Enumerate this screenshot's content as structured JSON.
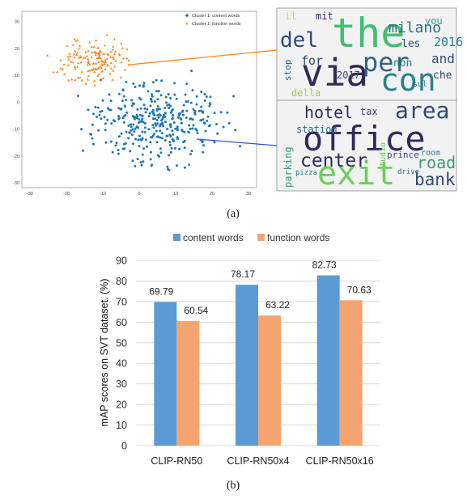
{
  "panel_a": {
    "caption": "(a)",
    "legend": [
      {
        "label": "Cluster 1: content words",
        "color": "#1f77b4",
        "marker": "dot"
      },
      {
        "label": "Cluster 1: function words",
        "color": "#ff7f0e",
        "marker": "triangle"
      }
    ],
    "x_ticks": [
      "-30",
      "-20",
      "-10",
      "0",
      "10",
      "20",
      "30"
    ],
    "y_ticks": [
      "30",
      "20",
      "10",
      "0",
      "-10",
      "-20",
      "-30"
    ],
    "wordcloud_function": [
      {
        "text": "the",
        "color": "#3fbf73"
      },
      {
        "text": "via",
        "color": "#2f2a5a"
      },
      {
        "text": "per",
        "color": "#33627e"
      },
      {
        "text": "con",
        "color": "#2a7f8c"
      },
      {
        "text": "del",
        "color": "#2f4a78"
      },
      {
        "text": "milano",
        "color": "#2d6a8a"
      },
      {
        "text": "and",
        "color": "#2d4f7f"
      },
      {
        "text": "2016",
        "color": "#2a7f8c"
      },
      {
        "text": "for",
        "color": "#2f4a78"
      },
      {
        "text": "stop",
        "color": "#2f5d86"
      },
      {
        "text": "non",
        "color": "#2a7f8c"
      },
      {
        "text": "les",
        "color": "#2f4a78"
      },
      {
        "text": "che",
        "color": "#2f4a78"
      },
      {
        "text": "mit",
        "color": "#2f2a5a"
      },
      {
        "text": "you",
        "color": "#3a9d7b"
      },
      {
        "text": "2017",
        "color": "#2f4a78"
      },
      {
        "text": "della",
        "color": "#9fcf55"
      },
      {
        "text": "sul",
        "color": "#2a7f8c"
      },
      {
        "text": "il",
        "color": "#c8dc3a"
      }
    ],
    "wordcloud_content": [
      {
        "text": "area",
        "color": "#2f4a78"
      },
      {
        "text": "hotel",
        "color": "#2a2e5c"
      },
      {
        "text": "office",
        "color": "#2f2a5a"
      },
      {
        "text": "station",
        "color": "#2d6a8a"
      },
      {
        "text": "center",
        "color": "#2f2a5a"
      },
      {
        "text": "exit",
        "color": "#6ccf5a"
      },
      {
        "text": "road",
        "color": "#3a9d7b"
      },
      {
        "text": "bank",
        "color": "#2f4a78"
      },
      {
        "text": "prince",
        "color": "#2f4a78"
      },
      {
        "text": "parking",
        "color": "#3a9d7b"
      },
      {
        "text": "pizza",
        "color": "#2a7f8c"
      },
      {
        "text": "tax",
        "color": "#2f4a78"
      },
      {
        "text": "drive",
        "color": "#2d6a8a"
      },
      {
        "text": "studio",
        "color": "#6ccf5a"
      },
      {
        "text": "room",
        "color": "#2a7f8c"
      }
    ]
  },
  "panel_b": {
    "caption": "(b)",
    "colors": {
      "content": "#5b9bd5",
      "function": "#f4a46e",
      "grid": "#d9d9d9",
      "axis_text": "#333333"
    }
  },
  "chart_data": [
    {
      "type": "scatter",
      "title": "",
      "xlabel": "",
      "ylabel": "",
      "xlim": [
        -30,
        30
      ],
      "ylim": [
        -30,
        32
      ],
      "series": [
        {
          "name": "Cluster 1: content words",
          "color": "#1f77b4"
        },
        {
          "name": "Cluster 1: function words",
          "color": "#ff7f0e"
        }
      ]
    },
    {
      "type": "bar",
      "title": "",
      "xlabel": "",
      "ylabel": "mAP scores on SVT dataset. (%)",
      "categories": [
        "CLIP-RN50",
        "CLIP-RN50x4",
        "CLIP-RN50x16"
      ],
      "series": [
        {
          "name": "content words",
          "values": [
            69.79,
            78.17,
            82.73
          ],
          "labels": [
            "69.79",
            "78.17",
            "82.73"
          ],
          "color": "#5b9bd5"
        },
        {
          "name": "function words",
          "values": [
            60.54,
            63.22,
            70.63
          ],
          "labels": [
            "60.54",
            "63.22",
            "70.63"
          ],
          "color": "#f4a46e"
        }
      ],
      "ylim": [
        0,
        90
      ],
      "yticks": [
        0,
        10,
        20,
        30,
        40,
        50,
        60,
        70,
        80,
        90
      ],
      "grid": true,
      "legend_position": "top"
    }
  ]
}
